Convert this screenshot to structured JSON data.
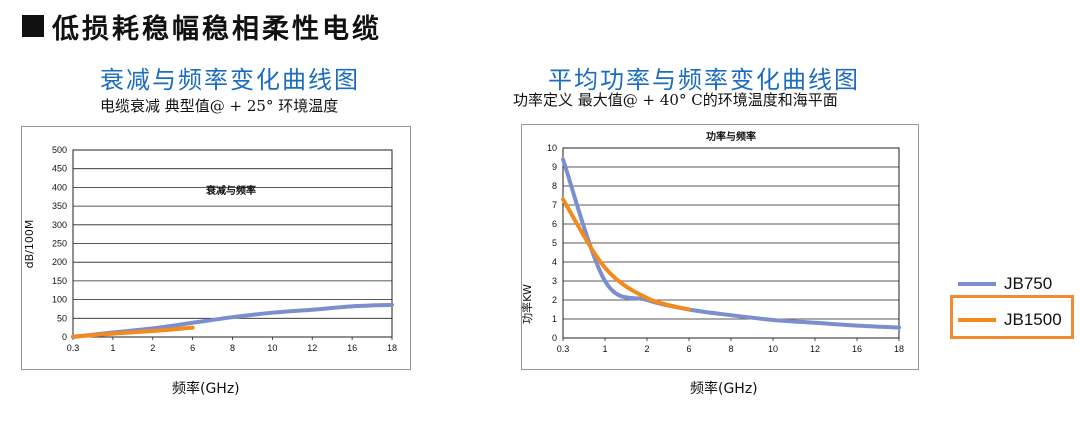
{
  "heading": "低损耗稳幅稳相柔性电缆",
  "colors": {
    "JB750": "#7b8fcf",
    "JB1500": "#f28a1e",
    "title_blue": "#1b6dbf",
    "legend_box": "#f28a2e"
  },
  "legend": [
    {
      "name": "JB750"
    },
    {
      "name": "JB1500"
    }
  ],
  "chart_data": [
    {
      "type": "line",
      "page_title": "衰减与频率变化曲线图",
      "subtitle": "电缆衰减 典型值@ + 25° 环境温度",
      "title": "衰减与频率",
      "xlabel": "频率(GHz)",
      "ylabel": "dB/100M",
      "x_ticks": [
        "0.3",
        "1",
        "2",
        "6",
        "8",
        "10",
        "12",
        "16",
        "18"
      ],
      "y_ticks": [
        "0",
        "50",
        "100",
        "150",
        "200",
        "250",
        "300",
        "350",
        "400",
        "450",
        "500"
      ],
      "ylim": [
        0,
        500
      ],
      "series": [
        {
          "name": "JB750",
          "x": [
            "0.3",
            "1",
            "2",
            "6",
            "8",
            "10",
            "12",
            "16",
            "18"
          ],
          "values": [
            0,
            12,
            23,
            38,
            53,
            65,
            73,
            82,
            86
          ]
        },
        {
          "name": "JB1500",
          "x": [
            "0.3",
            "1",
            "2",
            "6"
          ],
          "values": [
            1,
            9,
            16,
            25
          ]
        }
      ]
    },
    {
      "type": "line",
      "page_title": "平均功率与频率变化曲线图",
      "subtitle": "功率定义  最大值@ + 40° C的环境温度和海平面",
      "title": "功率与频率",
      "xlabel": "频率(GHz)",
      "ylabel": "功率KW",
      "x_ticks": [
        "0.3",
        "1",
        "2",
        "6",
        "8",
        "10",
        "12",
        "16",
        "18"
      ],
      "y_ticks": [
        "0",
        "1",
        "2",
        "3",
        "4",
        "5",
        "6",
        "7",
        "8",
        "9",
        "10"
      ],
      "ylim": [
        0,
        10
      ],
      "series": [
        {
          "name": "JB750",
          "x": [
            "0.3",
            "1",
            "2",
            "6",
            "8",
            "10",
            "12",
            "16",
            "18"
          ],
          "values": [
            9.4,
            3.0,
            2.0,
            1.5,
            1.2,
            0.95,
            0.8,
            0.65,
            0.55
          ]
        },
        {
          "name": "JB1500",
          "x": [
            "0.3",
            "1",
            "2",
            "6"
          ],
          "values": [
            7.3,
            3.7,
            2.1,
            1.5
          ]
        }
      ]
    }
  ]
}
